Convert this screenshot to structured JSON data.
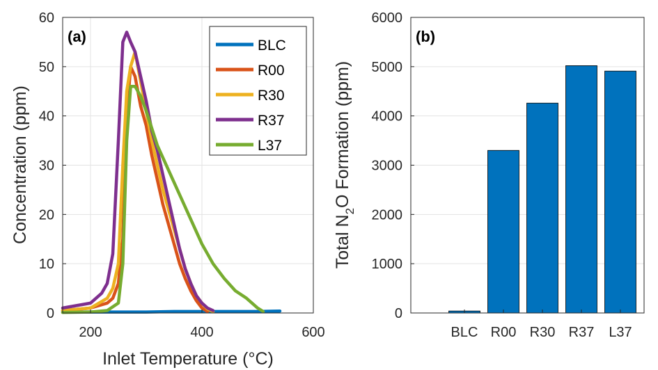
{
  "chart_data": [
    {
      "type": "line",
      "panel_label": "(a)",
      "xlabel": "Inlet Temperature (°C)",
      "xlabel_main": "Inlet Temperature (",
      "xlabel_unit": "°C",
      "xlabel_close": ")",
      "ylabel": "Concentration (ppm)",
      "xlim": [
        150,
        600
      ],
      "ylim": [
        0,
        60
      ],
      "xticks": [
        "200",
        "400",
        "600"
      ],
      "yticks": [
        "0",
        "10",
        "20",
        "30",
        "40",
        "50",
        "60"
      ],
      "grid": true,
      "legend_position": "top-right",
      "series": [
        {
          "name": "BLC",
          "color": "#0072BD",
          "x": [
            150,
            200,
            250,
            300,
            350,
            400,
            450,
            500,
            540
          ],
          "y": [
            0.2,
            0.2,
            0.2,
            0.2,
            0.3,
            0.3,
            0.3,
            0.3,
            0.4
          ]
        },
        {
          "name": "R00",
          "color": "#D95319",
          "x": [
            150,
            200,
            230,
            240,
            250,
            258,
            265,
            272,
            280,
            290,
            300,
            310,
            320,
            330,
            340,
            350,
            360,
            370,
            380,
            390,
            400,
            410
          ],
          "y": [
            0.5,
            1,
            2,
            3,
            6,
            15,
            40,
            50,
            48,
            42,
            38,
            32,
            27,
            22,
            18,
            14,
            10,
            7,
            4.5,
            2.5,
            1,
            0.3
          ]
        },
        {
          "name": "R30",
          "color": "#EDB120",
          "x": [
            150,
            200,
            230,
            240,
            250,
            258,
            265,
            272,
            280,
            290,
            300,
            310,
            320,
            330,
            340,
            350,
            360,
            370,
            380,
            390,
            400,
            410,
            420
          ],
          "y": [
            0.5,
            1,
            3,
            5,
            10,
            30,
            45,
            50,
            53,
            47,
            41,
            35,
            30,
            25,
            21,
            17,
            13,
            9,
            6,
            3.5,
            2,
            0.8,
            0.3
          ]
        },
        {
          "name": "R37",
          "color": "#7E2F8E",
          "x": [
            150,
            200,
            220,
            230,
            240,
            250,
            258,
            265,
            272,
            280,
            290,
            300,
            310,
            320,
            330,
            340,
            350,
            360,
            370,
            380,
            390,
            400,
            410,
            420
          ],
          "y": [
            1,
            2,
            4,
            6,
            12,
            35,
            55,
            57,
            55,
            53,
            48,
            43,
            37,
            33,
            28,
            23,
            18,
            13,
            9,
            6,
            3.5,
            2,
            1,
            0.5
          ]
        },
        {
          "name": "L37",
          "color": "#77AC30",
          "x": [
            150,
            200,
            230,
            250,
            258,
            265,
            272,
            280,
            290,
            300,
            320,
            340,
            360,
            380,
            400,
            420,
            440,
            460,
            480,
            500,
            510
          ],
          "y": [
            0.1,
            0.2,
            0.5,
            2,
            10,
            35,
            46,
            46,
            44,
            41,
            34,
            29,
            24,
            19,
            14,
            10,
            7,
            4.5,
            3,
            1,
            0.3
          ]
        }
      ]
    },
    {
      "type": "bar",
      "panel_label": "(b)",
      "ylabel": "Total N2O Formation (ppm)",
      "ylabel_pre": "Total N",
      "ylabel_sub": "2",
      "ylabel_post": "O Formation (ppm)",
      "categories": [
        "BLC",
        "R00",
        "R30",
        "R37",
        "L37"
      ],
      "values": [
        40,
        3300,
        4260,
        5020,
        4910
      ],
      "ylim": [
        0,
        6000
      ],
      "yticks": [
        "0",
        "1000",
        "2000",
        "3000",
        "4000",
        "5000",
        "6000"
      ],
      "grid": true,
      "bar_color": "#0072BD"
    }
  ]
}
